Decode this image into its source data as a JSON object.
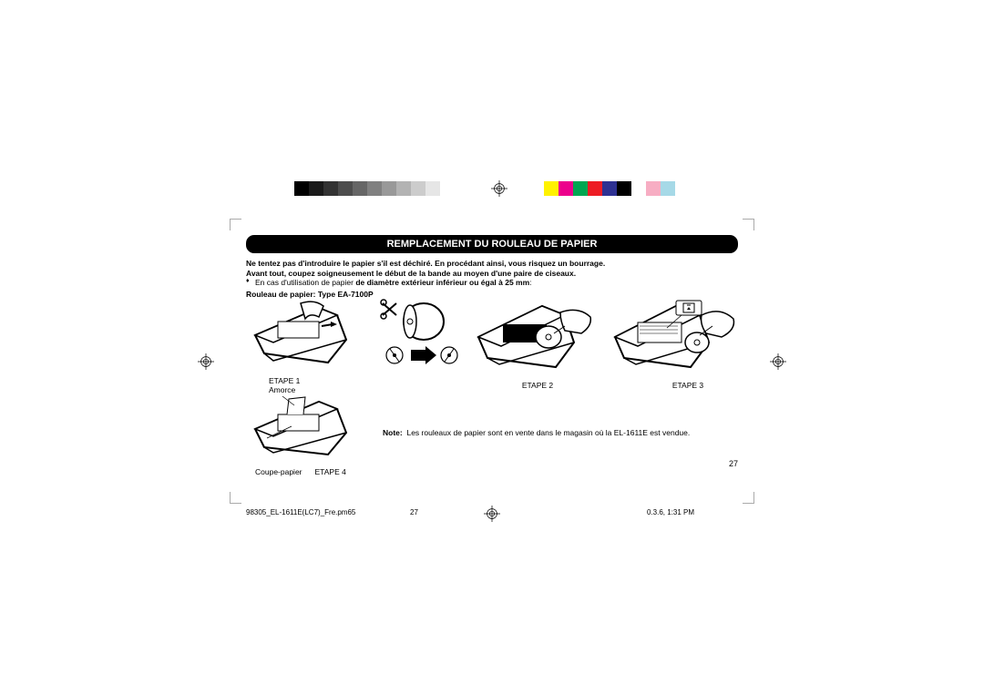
{
  "grays": [
    "#000000",
    "#1a1a1a",
    "#333333",
    "#4d4d4d",
    "#666666",
    "#808080",
    "#999999",
    "#b3b3b3",
    "#cccccc",
    "#e6e6e6",
    "#ffffff"
  ],
  "colors": [
    "#fff200",
    "#ec008c",
    "#00a651",
    "#ed1c24",
    "#2e3192",
    "#000000",
    "#ffffff",
    "#f7adc3",
    "#a6d9e7",
    "#ffffff"
  ],
  "title": "REMPLACEMENT DU ROULEAU DE PAPIER",
  "warn1": "Ne tentez pas d'introduire le papier s'il est déchiré. En procédant ainsi, vous risquez un bourrage.",
  "warn2": "Avant tout, coupez soigneusement le début de la bande au moyen d'une paire de ciseaux.",
  "bullet_prefix": "En cas d'utilisation de papier ",
  "bullet_bold": "de diamètre extérieur inférieur ou égal à 25 mm",
  "bullet_suffix": ":",
  "subhead": "Rouleau de papier: Type EA-7100P",
  "step1": "ETAPE 1",
  "step2": "ETAPE 2",
  "step3": "ETAPE 3",
  "step4": "ETAPE 4",
  "amorce": "Amorce",
  "coupe": "Coupe-papier",
  "note_label": "Note:",
  "note_text": "Les rouleaux de papier sont en vente dans le magasin où la EL-1611E est vendue.",
  "page_number": "27",
  "footer_file": "98305_EL-1611E(LC7)_Fre.pm65",
  "footer_page": "27",
  "footer_ts": "0.3.6, 1:31 PM"
}
